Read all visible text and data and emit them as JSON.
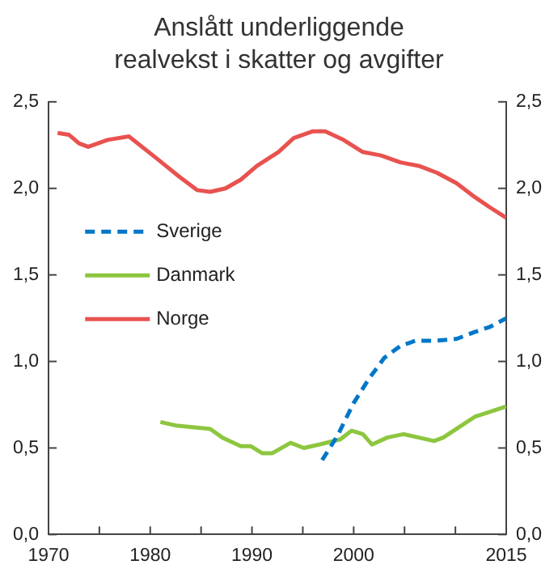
{
  "chart_data": {
    "type": "line",
    "title": "Anslått underliggende realvekst i skatter og avgifter",
    "xlim": [
      1970,
      2015
    ],
    "xticks": [
      1970,
      {
        "value": 1975,
        "label": null
      },
      1980,
      {
        "value": 1985,
        "label": null
      },
      1990,
      {
        "value": 1995,
        "label": null
      },
      2000,
      {
        "value": 2005,
        "label": null
      },
      {
        "value": 2010,
        "label": null
      },
      2015
    ],
    "ylim": [
      0,
      2.5
    ],
    "yticks": [
      {
        "value": 0,
        "label": "0,0"
      },
      {
        "value": 0.5,
        "label": "0,5"
      },
      {
        "value": 1,
        "label": "1,0"
      },
      {
        "value": 1.5,
        "label": "1,5"
      },
      {
        "value": 2,
        "label": "2,0"
      },
      {
        "value": 2.5,
        "label": "2,5"
      }
    ],
    "y2lim": [
      0,
      2.5
    ],
    "y2ticks": [
      {
        "value": 0,
        "label": "0,0"
      },
      {
        "value": 0.5,
        "label": "0,5"
      },
      {
        "value": 1,
        "label": "1,0"
      },
      {
        "value": 1.5,
        "label": "1,5"
      },
      {
        "value": 2,
        "label": "2,0"
      },
      {
        "value": 2.5,
        "label": "2,5"
      }
    ],
    "grid": false,
    "legend": "left",
    "marker": "none",
    "series": [
      {
        "name": "Sverige",
        "color": "#0077c8",
        "line_style": "dashed",
        "x": [
          1996.9,
          1998.4,
          2000,
          2001.5,
          2003,
          2004.6,
          2006.1,
          2008.2,
          2010.1,
          2011.9,
          2013.4,
          2015
        ],
        "values": [
          0.43,
          0.57,
          0.76,
          0.9,
          1.02,
          1.09,
          1.12,
          1.12,
          1.13,
          1.17,
          1.2,
          1.25
        ]
      },
      {
        "name": "Danmark",
        "color": "#8dc63f",
        "line_style": "solid",
        "x": [
          1981,
          1982.5,
          1985.9,
          1987.1,
          1988.9,
          1989.9,
          1991,
          1992,
          1993.8,
          1995.1,
          1996.6,
          1998.7,
          1999.8,
          2000.9,
          2001.8,
          2003.3,
          2004.9,
          2006.4,
          2007.9,
          2008.8,
          2010.1,
          2011.9,
          2015
        ],
        "values": [
          0.65,
          0.63,
          0.61,
          0.56,
          0.51,
          0.51,
          0.47,
          0.47,
          0.53,
          0.5,
          0.52,
          0.55,
          0.6,
          0.58,
          0.52,
          0.56,
          0.58,
          0.56,
          0.54,
          0.56,
          0.61,
          0.68,
          0.74
        ]
      },
      {
        "name": "Norge",
        "color": "#e8524f",
        "line_style": "solid",
        "x": [
          1970.9,
          1972,
          1973,
          1973.9,
          1975.8,
          1977.9,
          1980.7,
          1982.8,
          1984.6,
          1985.9,
          1987.4,
          1988.9,
          1990.5,
          1992.6,
          1994.1,
          1996,
          1997.2,
          1999,
          2000.9,
          2002.7,
          2004.6,
          2006.4,
          2008.2,
          2010.1,
          2011.9,
          2013.4,
          2015
        ],
        "values": [
          2.32,
          2.31,
          2.26,
          2.24,
          2.28,
          2.3,
          2.17,
          2.07,
          1.99,
          1.98,
          2.0,
          2.05,
          2.13,
          2.21,
          2.29,
          2.33,
          2.33,
          2.28,
          2.21,
          2.19,
          2.15,
          2.13,
          2.09,
          2.03,
          1.95,
          1.89,
          1.83
        ]
      }
    ]
  }
}
